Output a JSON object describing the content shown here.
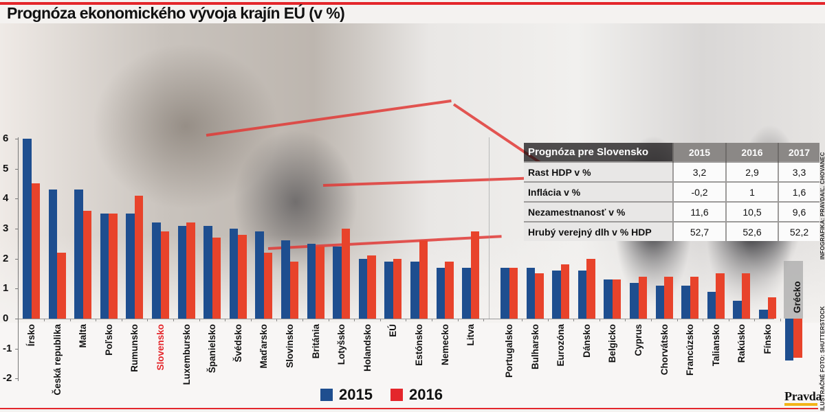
{
  "title": "Prognóza ekonomického vývoja krajín EÚ (v %)",
  "colors": {
    "accent": "#e4262b",
    "series_2015": "#1e4e8f",
    "series_2016": "#e8432b",
    "table_header": "#8b8886"
  },
  "chart_data": {
    "type": "bar",
    "title": "Prognóza ekonomického vývoja krajín EÚ (v %)",
    "xlabel": "",
    "ylabel": "",
    "ylim": [
      -2,
      6
    ],
    "yticks": [
      6,
      5,
      4,
      3,
      2,
      1,
      0,
      -1,
      -2
    ],
    "grid": false,
    "legend_position": "bottom-center",
    "highlighted_category": "Slovensko",
    "categories": [
      "Írsko",
      "Česká republika",
      "Malta",
      "Poľsko",
      "Rumunsko",
      "Slovensko",
      "Luxembursko",
      "Španielsko",
      "Švédsko",
      "Maďarsko",
      "Slovinsko",
      "Británia",
      "Lotyšsko",
      "Holandsko",
      "EÚ",
      "Estónsko",
      "Nemecko",
      "Litva",
      "Portugalsko",
      "Bulharsko",
      "Eurozóna",
      "Dánsko",
      "Belgicko",
      "Cyprus",
      "Chorvátsko",
      "Francúzsko",
      "Taliansko",
      "Rakúsko",
      "Fínsko",
      "Grécko"
    ],
    "series": [
      {
        "name": "2015",
        "values": [
          6.0,
          4.3,
          4.3,
          3.5,
          3.5,
          3.2,
          3.1,
          3.1,
          3.0,
          2.9,
          2.6,
          2.5,
          2.4,
          2.0,
          1.9,
          1.9,
          1.7,
          1.7,
          1.7,
          1.7,
          1.6,
          1.6,
          1.3,
          1.2,
          1.1,
          1.1,
          0.9,
          0.6,
          0.3,
          -1.4
        ]
      },
      {
        "name": "2016",
        "values": [
          4.5,
          2.2,
          3.6,
          3.5,
          4.1,
          2.9,
          3.2,
          2.7,
          2.8,
          2.2,
          1.9,
          2.4,
          3.0,
          2.1,
          2.0,
          2.6,
          1.9,
          2.9,
          1.7,
          1.5,
          1.8,
          2.0,
          1.3,
          1.4,
          1.4,
          1.4,
          1.5,
          1.5,
          0.7,
          -1.3
        ]
      }
    ]
  },
  "legend": [
    {
      "label": "2015",
      "color": "#1e4e8f"
    },
    {
      "label": "2016",
      "color": "#e8432b"
    }
  ],
  "slovakia_table": {
    "title": "Prognóza pre Slovensko",
    "years": [
      "2015",
      "2016",
      "2017"
    ],
    "rows": [
      {
        "label": "Rast HDP v %",
        "values": [
          "3,2",
          "2,9",
          "3,3"
        ]
      },
      {
        "label": "Inflácia v %",
        "values": [
          "-0,2",
          "1",
          "1,6"
        ]
      },
      {
        "label": "Nezamestnanosť v %",
        "values": [
          "11,6",
          "10,5",
          "9,6"
        ]
      },
      {
        "label": "Hrubý verejný dlh v % HDP",
        "values": [
          "52,7",
          "52,6",
          "52,2"
        ]
      }
    ]
  },
  "credits": {
    "infographic": "INFOGRAFIKA: PRAVDA/Ľ. CHOVANEC",
    "photo": "ILUSTRAČNÉ FOTO: SHUTTERSTOCK",
    "logo": "Pravda"
  }
}
